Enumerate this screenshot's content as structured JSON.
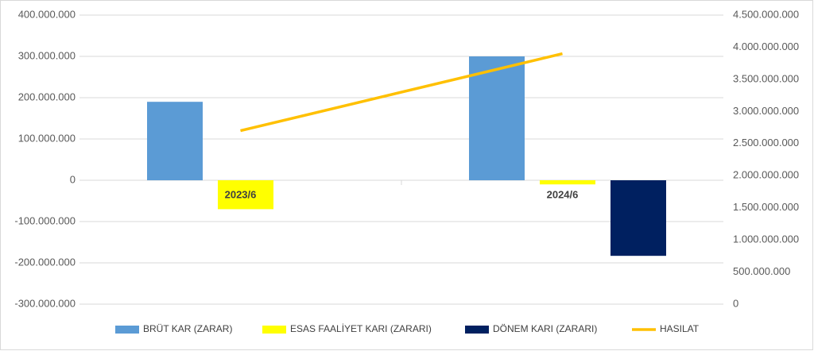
{
  "chart_data": {
    "type": "bar",
    "categories": [
      "2023/6",
      "2024/6"
    ],
    "series": [
      {
        "name": "BRÜT KAR (ZARAR)",
        "color": "#5b9bd5",
        "values": [
          190000000,
          300000000
        ]
      },
      {
        "name": "ESAS FAALİYET KARI (ZARARI)",
        "color": "#ffff00",
        "values": [
          -70000000,
          -10000000
        ]
      },
      {
        "name": "DÖNEM KARI (ZARARI)",
        "color": "#002060",
        "values": [
          null,
          -183000000
        ]
      },
      {
        "name": "HASILAT",
        "color": "#ffc000",
        "type": "line",
        "axis": "y2",
        "values": [
          2700000000,
          3900000000
        ]
      }
    ],
    "ylim": [
      -300000000,
      400000000
    ],
    "yticks": [
      {
        "value": -300000000,
        "label": "-300.000.000"
      },
      {
        "value": -200000000,
        "label": "-200.000.000"
      },
      {
        "value": -100000000,
        "label": "-100.000.000"
      },
      0,
      {
        "value": 100000000,
        "label": "100.000.000"
      },
      {
        "value": 200000000,
        "label": "200.000.000"
      },
      {
        "value": 300000000,
        "label": "300.000.000"
      },
      {
        "value": 400000000,
        "label": "400.000.000"
      }
    ],
    "y2lim": [
      0,
      4500000000
    ],
    "y2ticks": [
      0,
      {
        "value": 500000000,
        "label": "500.000.000"
      },
      {
        "value": 1000000000,
        "label": "1.000.000.000"
      },
      {
        "value": 1500000000,
        "label": "1.500.000.000"
      },
      {
        "value": 2000000000,
        "label": "2.000.000.000"
      },
      {
        "value": 2500000000,
        "label": "2.500.000.000"
      },
      {
        "value": 3000000000,
        "label": "3.000.000.000"
      },
      {
        "value": 3500000000,
        "label": "3.500.000.000"
      },
      {
        "value": 4000000000,
        "label": "4.000.000.000"
      },
      {
        "value": 4500000000,
        "label": "4.500.000.000"
      }
    ],
    "grid": true,
    "legend": "bottom"
  }
}
